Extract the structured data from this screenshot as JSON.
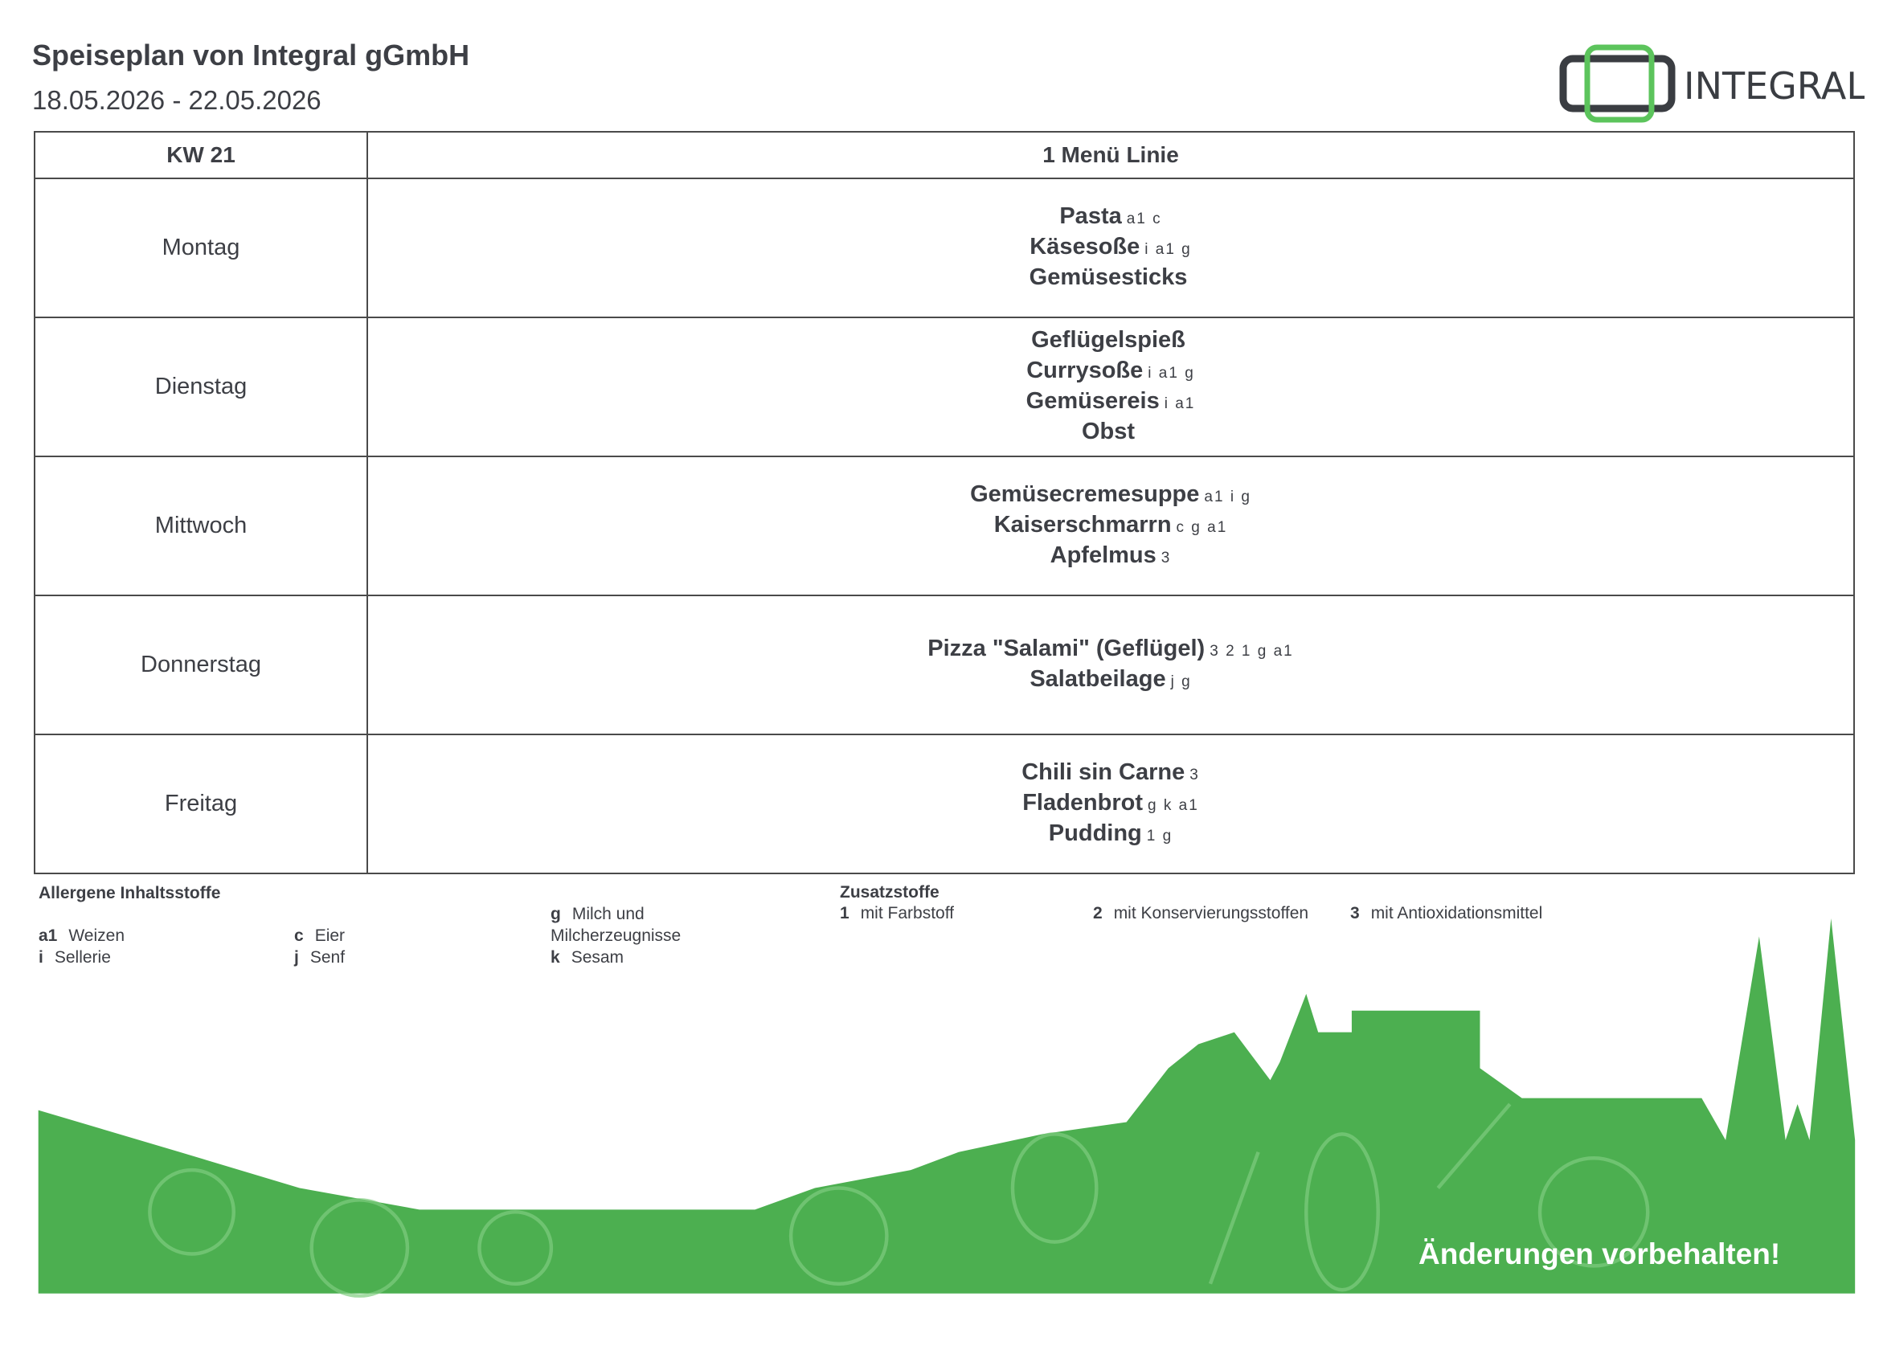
{
  "header": {
    "title": "Speiseplan von Integral gGmbH",
    "dates": "18.05.2026 - 22.05.2026",
    "logo_text": "INTEGRAL"
  },
  "colors": {
    "brand_green": "#4caf50",
    "logo_dark": "#3a3d42",
    "text": "#3d3f45"
  },
  "table": {
    "week": "KW 21",
    "line": "1 Menü Linie",
    "days": [
      {
        "day": "Montag",
        "dishes": [
          {
            "name": "Pasta",
            "codes": "a1 c"
          },
          {
            "name": "Käsesoße",
            "codes": "i a1 g"
          },
          {
            "name": "Gemüsesticks",
            "codes": ""
          }
        ]
      },
      {
        "day": "Dienstag",
        "dishes": [
          {
            "name": "Geflügelspieß",
            "codes": ""
          },
          {
            "name": "Currysoße",
            "codes": "i a1 g"
          },
          {
            "name": "Gemüsereis",
            "codes": "i a1"
          },
          {
            "name": "Obst",
            "codes": ""
          }
        ]
      },
      {
        "day": "Mittwoch",
        "dishes": [
          {
            "name": "Gemüsecremesuppe",
            "codes": "a1 i g"
          },
          {
            "name": "Kaiserschmarrn",
            "codes": "c g a1"
          },
          {
            "name": "Apfelmus",
            "codes": "3"
          }
        ]
      },
      {
        "day": "Donnerstag",
        "dishes": [
          {
            "name": "Pizza \"Salami\" (Geflügel)",
            "codes": "3 2 1 g a1"
          },
          {
            "name": "Salatbeilage",
            "codes": "j g"
          }
        ]
      },
      {
        "day": "Freitag",
        "dishes": [
          {
            "name": "Chili sin Carne",
            "codes": "3"
          },
          {
            "name": "Fladenbrot",
            "codes": "g k a1"
          },
          {
            "name": "Pudding",
            "codes": "1 g"
          }
        ]
      }
    ]
  },
  "allergens": {
    "heading": "Allergene Inhaltsstoffe",
    "items": [
      {
        "code": "a1",
        "label": "Weizen"
      },
      {
        "code": "i",
        "label": "Sellerie"
      },
      {
        "code": "c",
        "label": "Eier"
      },
      {
        "code": "j",
        "label": "Senf"
      },
      {
        "code": "g",
        "label": "Milch und",
        "label2": "Milcherzeugnisse"
      },
      {
        "code": "k",
        "label": "Sesam"
      }
    ]
  },
  "additives": {
    "heading": "Zusatzstoffe",
    "items": [
      {
        "code": "1",
        "label": "mit Farbstoff"
      },
      {
        "code": "2",
        "label": "mit Konservierungsstoffen"
      },
      {
        "code": "3",
        "label": "mit Antioxidationsmittel"
      }
    ]
  },
  "footer": {
    "note": "Änderungen vorbehalten!"
  }
}
